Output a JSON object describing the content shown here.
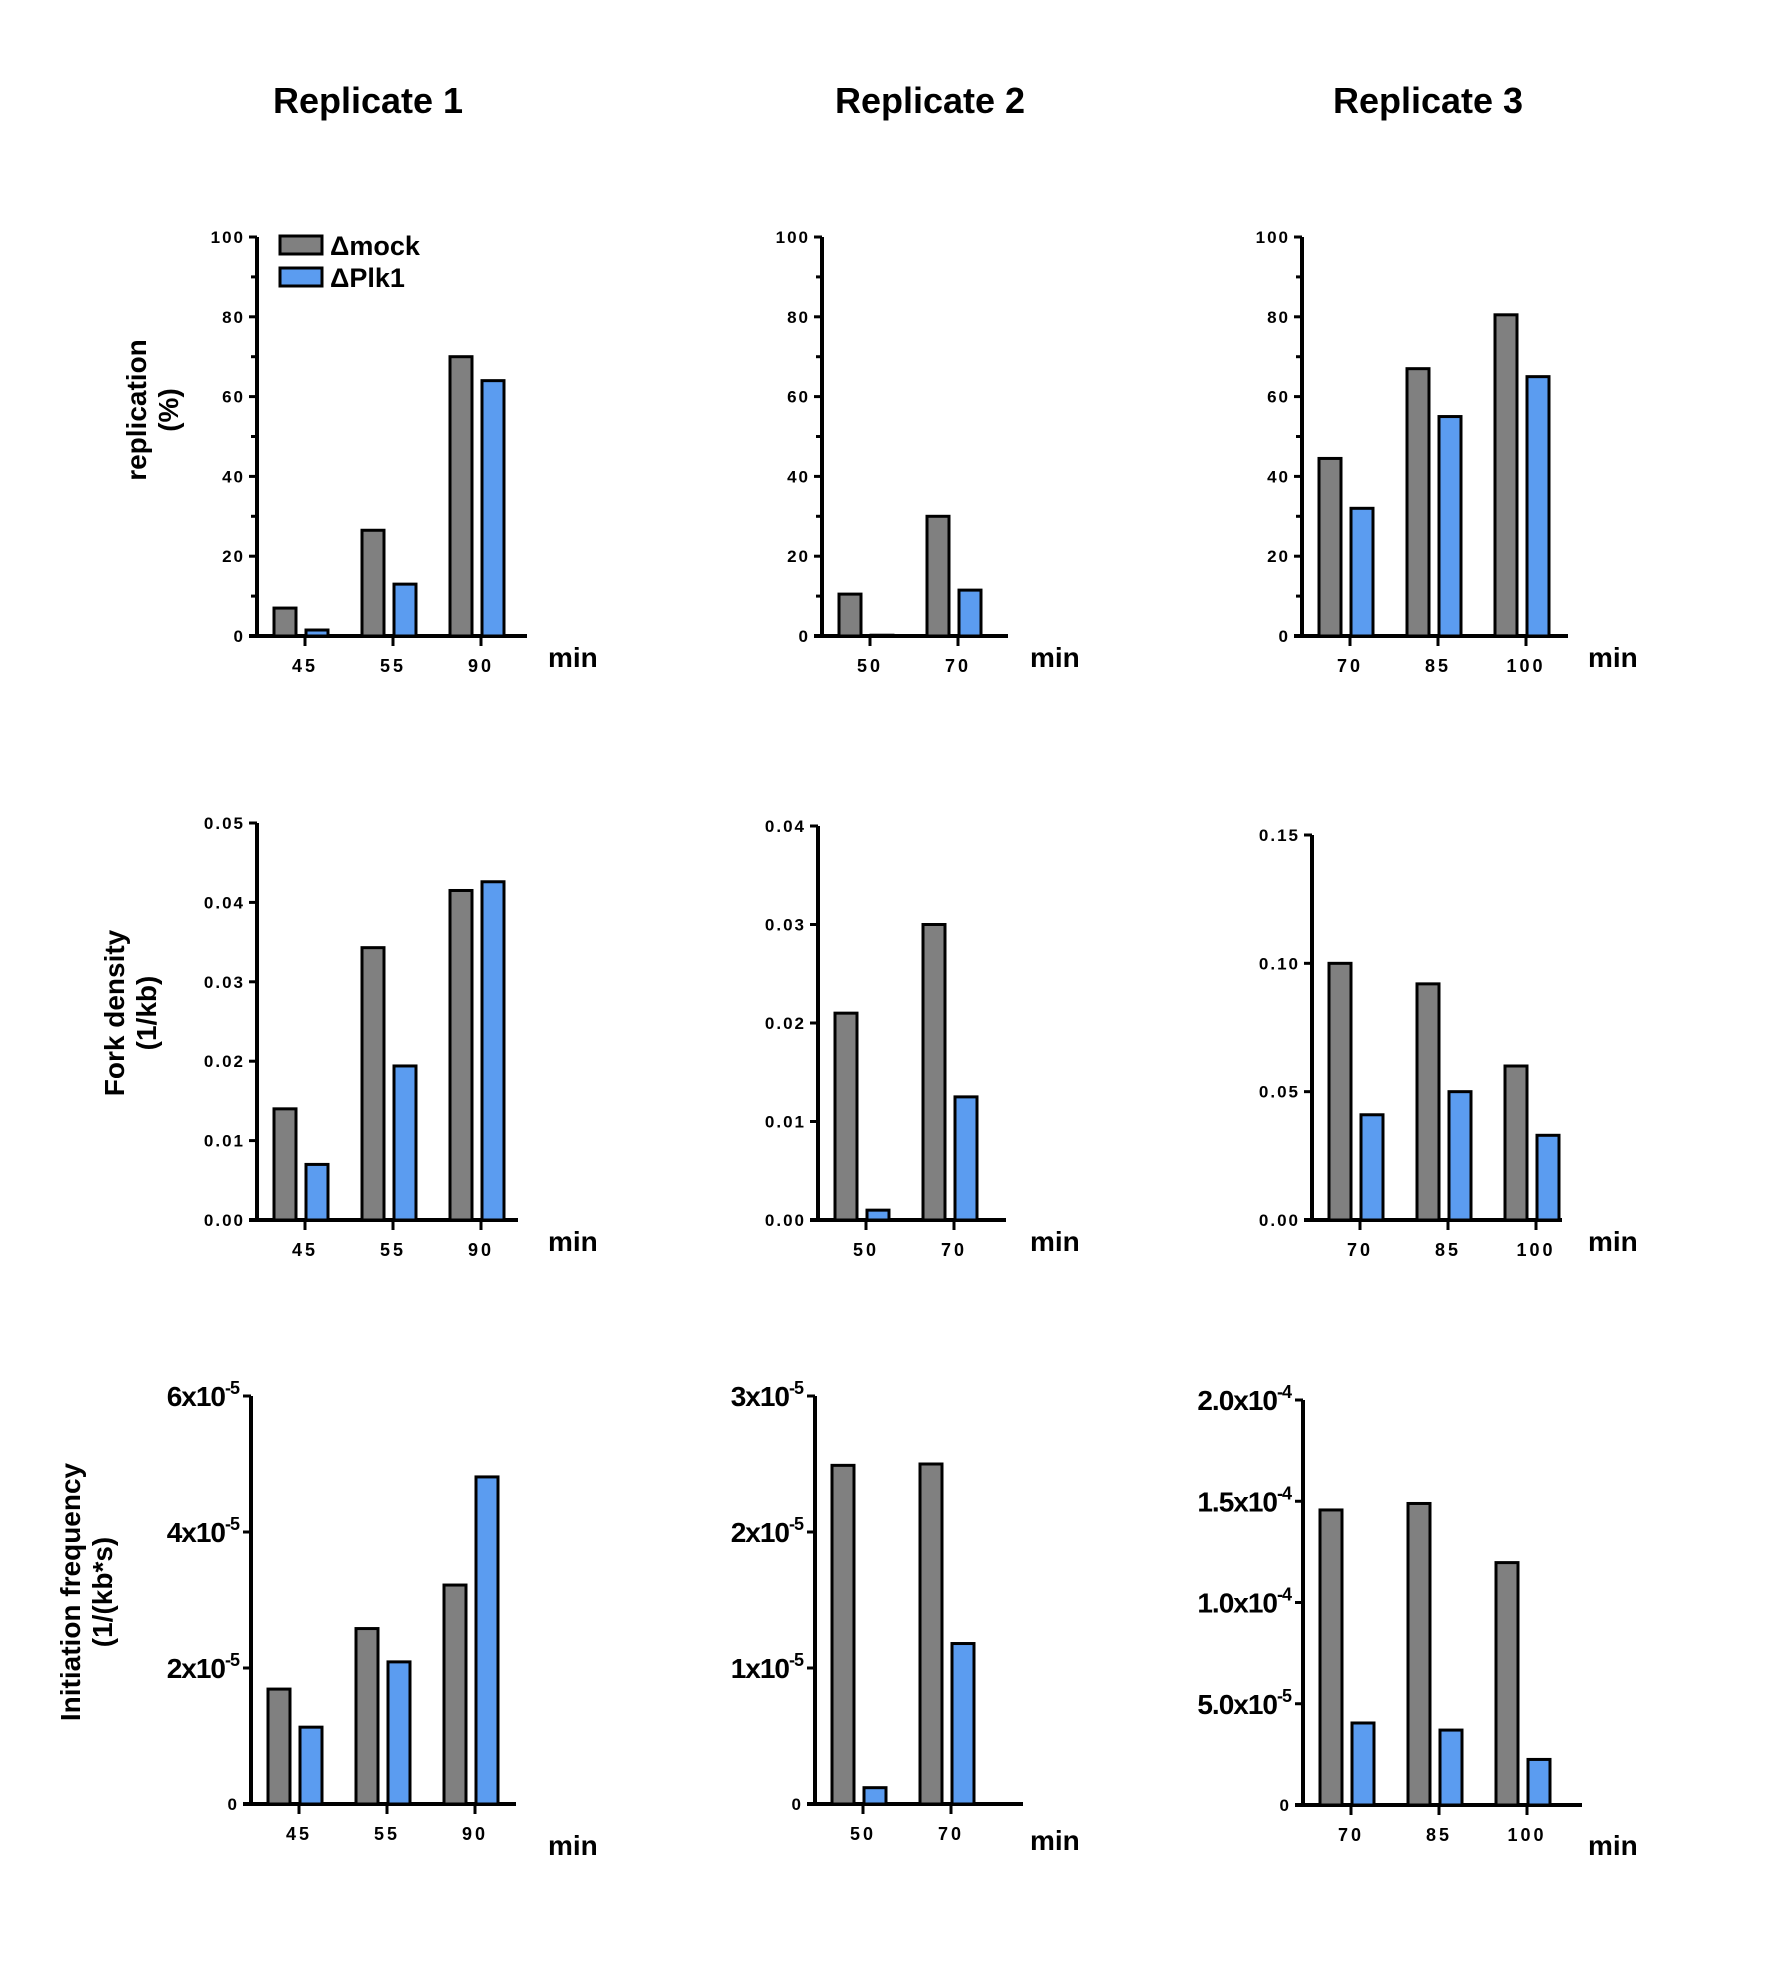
{
  "column_titles": [
    "Replicate 1",
    "Replicate 2",
    "Replicate 3"
  ],
  "legend": {
    "placement": "top-left of first panel",
    "items": [
      {
        "label": "Δmock",
        "color": "#808080"
      },
      {
        "label": "ΔPlk1",
        "color": "#5b9cf0"
      }
    ]
  },
  "row_ylabels": [
    [
      "replication",
      "(%)"
    ],
    [
      "Fork density",
      "(1/kb)"
    ],
    [
      "Initiation frequency",
      "(1/(kb*s)"
    ]
  ],
  "colors": {
    "mock": "#808080",
    "plk1": "#5b9cf0",
    "axis": "#000000"
  },
  "chart_data": [
    {
      "type": "bar",
      "row": 0,
      "col": 0,
      "title": "Replicate 1",
      "ylabel": "replication (%)",
      "xlabel": "min",
      "categories": [
        "45",
        "55",
        "90"
      ],
      "ylim": [
        0,
        100
      ],
      "yticks": [
        {
          "v": 0,
          "label": "0"
        },
        {
          "v": 20,
          "label": "20"
        },
        {
          "v": 40,
          "label": "40"
        },
        {
          "v": 60,
          "label": "60"
        },
        {
          "v": 80,
          "label": "80"
        },
        {
          "v": 100,
          "label": "100"
        }
      ],
      "minor_ticks": [
        10,
        30,
        50,
        70,
        90
      ],
      "series": [
        {
          "name": "Δmock",
          "values": [
            7,
            26.5,
            70
          ]
        },
        {
          "name": "ΔPlk1",
          "values": [
            1.5,
            13,
            64
          ]
        }
      ]
    },
    {
      "type": "bar",
      "row": 0,
      "col": 1,
      "title": "Replicate 2",
      "ylabel": "replication (%)",
      "xlabel": "min",
      "categories": [
        "50",
        "70"
      ],
      "ylim": [
        0,
        100
      ],
      "yticks": [
        {
          "v": 0,
          "label": "0"
        },
        {
          "v": 20,
          "label": "20"
        },
        {
          "v": 40,
          "label": "40"
        },
        {
          "v": 60,
          "label": "60"
        },
        {
          "v": 80,
          "label": "80"
        },
        {
          "v": 100,
          "label": "100"
        }
      ],
      "minor_ticks": [
        10,
        30,
        50,
        70,
        90
      ],
      "series": [
        {
          "name": "Δmock",
          "values": [
            10.5,
            30
          ]
        },
        {
          "name": "ΔPlk1",
          "values": [
            0.2,
            11.5
          ]
        }
      ]
    },
    {
      "type": "bar",
      "row": 0,
      "col": 2,
      "title": "Replicate 3",
      "ylabel": "replication (%)",
      "xlabel": "min",
      "categories": [
        "70",
        "85",
        "100"
      ],
      "ylim": [
        0,
        100
      ],
      "yticks": [
        {
          "v": 0,
          "label": "0"
        },
        {
          "v": 20,
          "label": "20"
        },
        {
          "v": 40,
          "label": "40"
        },
        {
          "v": 60,
          "label": "60"
        },
        {
          "v": 80,
          "label": "80"
        },
        {
          "v": 100,
          "label": "100"
        }
      ],
      "minor_ticks": [
        10,
        30,
        50,
        70,
        90
      ],
      "series": [
        {
          "name": "Δmock",
          "values": [
            44.5,
            67,
            80.5
          ]
        },
        {
          "name": "ΔPlk1",
          "values": [
            32,
            55,
            65
          ]
        }
      ]
    },
    {
      "type": "bar",
      "row": 1,
      "col": 0,
      "title": "Replicate 1",
      "ylabel": "Fork density (1/kb)",
      "xlabel": "min",
      "categories": [
        "45",
        "55",
        "90"
      ],
      "ylim": [
        0,
        0.05
      ],
      "yticks": [
        {
          "v": 0,
          "label": "0.00"
        },
        {
          "v": 0.01,
          "label": "0.01"
        },
        {
          "v": 0.02,
          "label": "0.02"
        },
        {
          "v": 0.03,
          "label": "0.03"
        },
        {
          "v": 0.04,
          "label": "0.04"
        },
        {
          "v": 0.05,
          "label": "0.05"
        }
      ],
      "minor_ticks": [],
      "series": [
        {
          "name": "Δmock",
          "values": [
            0.014,
            0.0343,
            0.0415
          ]
        },
        {
          "name": "ΔPlk1",
          "values": [
            0.007,
            0.0194,
            0.0426
          ]
        }
      ]
    },
    {
      "type": "bar",
      "row": 1,
      "col": 1,
      "title": "Replicate 2",
      "ylabel": "Fork density (1/kb)",
      "xlabel": "min",
      "categories": [
        "50",
        "70"
      ],
      "ylim": [
        0,
        0.04
      ],
      "yticks": [
        {
          "v": 0,
          "label": "0.00"
        },
        {
          "v": 0.01,
          "label": "0.01"
        },
        {
          "v": 0.02,
          "label": "0.02"
        },
        {
          "v": 0.03,
          "label": "0.03"
        },
        {
          "v": 0.04,
          "label": "0.04"
        }
      ],
      "minor_ticks": [],
      "series": [
        {
          "name": "Δmock",
          "values": [
            0.021,
            0.03
          ]
        },
        {
          "name": "ΔPlk1",
          "values": [
            0.001,
            0.0125
          ]
        }
      ]
    },
    {
      "type": "bar",
      "row": 1,
      "col": 2,
      "title": "Replicate 3",
      "ylabel": "Fork density (1/kb)",
      "xlabel": "min",
      "categories": [
        "70",
        "85",
        "100"
      ],
      "ylim": [
        0,
        0.15
      ],
      "yticks": [
        {
          "v": 0,
          "label": "0.00"
        },
        {
          "v": 0.05,
          "label": "0.05"
        },
        {
          "v": 0.1,
          "label": "0.10"
        },
        {
          "v": 0.15,
          "label": "0.15"
        }
      ],
      "minor_ticks": [],
      "series": [
        {
          "name": "Δmock",
          "values": [
            0.1,
            0.092,
            0.06
          ]
        },
        {
          "name": "ΔPlk1",
          "values": [
            0.041,
            0.05,
            0.033
          ]
        }
      ]
    },
    {
      "type": "bar",
      "row": 2,
      "col": 0,
      "title": "Replicate 1",
      "ylabel": "Initiation frequency (1/(kb*s)",
      "xlabel": "min",
      "categories": [
        "45",
        "55",
        "90"
      ],
      "ylim": [
        0,
        6e-05
      ],
      "yticks": [
        {
          "v": 0,
          "label": "0"
        },
        {
          "v": 2e-05,
          "label": "2x10",
          "exp": "-5"
        },
        {
          "v": 4e-05,
          "label": "4x10",
          "exp": "-5"
        },
        {
          "v": 6e-05,
          "label": "6x10",
          "exp": "-5"
        }
      ],
      "minor_ticks": [],
      "series": [
        {
          "name": "Δmock",
          "values": [
            1.69e-05,
            2.58e-05,
            3.22e-05
          ]
        },
        {
          "name": "ΔPlk1",
          "values": [
            1.13e-05,
            2.09e-05,
            4.81e-05
          ]
        }
      ]
    },
    {
      "type": "bar",
      "row": 2,
      "col": 1,
      "title": "Replicate 2",
      "ylabel": "Initiation frequency (1/(kb*s)",
      "xlabel": "min",
      "categories": [
        "50",
        "70"
      ],
      "ylim": [
        0,
        3e-05
      ],
      "yticks": [
        {
          "v": 0,
          "label": "0"
        },
        {
          "v": 1e-05,
          "label": "1x10",
          "exp": "-5"
        },
        {
          "v": 2e-05,
          "label": "2x10",
          "exp": "-5"
        },
        {
          "v": 3e-05,
          "label": "3x10",
          "exp": "-5"
        }
      ],
      "minor_ticks": [],
      "series": [
        {
          "name": "Δmock",
          "values": [
            2.49e-05,
            2.5e-05
          ]
        },
        {
          "name": "ΔPlk1",
          "values": [
            1.2e-06,
            1.18e-05
          ]
        }
      ]
    },
    {
      "type": "bar",
      "row": 2,
      "col": 2,
      "title": "Replicate 3",
      "ylabel": "Initiation frequency (1/(kb*s)",
      "xlabel": "min",
      "categories": [
        "70",
        "85",
        "100"
      ],
      "ylim": [
        0,
        0.0002
      ],
      "yticks": [
        {
          "v": 0,
          "label": "0"
        },
        {
          "v": 5e-05,
          "label": "5.0x10",
          "exp": "-5"
        },
        {
          "v": 0.0001,
          "label": "1.0x10",
          "exp": "-4"
        },
        {
          "v": 0.00015,
          "label": "1.5x10",
          "exp": "-4"
        },
        {
          "v": 0.0002,
          "label": "2.0x10",
          "exp": "-4"
        }
      ],
      "minor_ticks": [],
      "series": [
        {
          "name": "Δmock",
          "values": [
            0.0001457,
            0.0001489,
            0.0001197
          ]
        },
        {
          "name": "ΔPlk1",
          "values": [
            4.05e-05,
            3.7e-05,
            2.25e-05
          ]
        }
      ]
    }
  ]
}
